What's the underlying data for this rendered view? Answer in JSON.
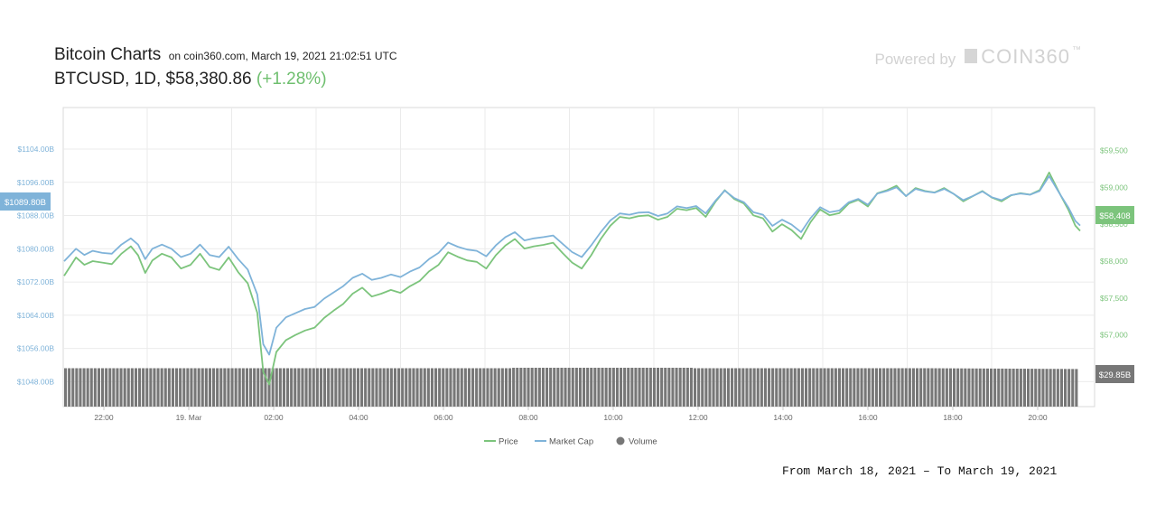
{
  "header": {
    "title": "Bitcoin Charts",
    "source": "on coin360.com, March 19, 2021 21:02:51 UTC",
    "pair": "BTCUSD, 1D, $58,380.86",
    "change": "(+1.28%)"
  },
  "branding": {
    "powered_by": "Powered by",
    "logo_text": "COIN360",
    "logo_tm": "™"
  },
  "footer": {
    "date_range": "From March 18, 2021 – To March 19, 2021"
  },
  "colors": {
    "price": "#7cc47c",
    "market_cap": "#7fb3d9",
    "volume": "#777777",
    "grid": "#ebebeb"
  },
  "chart_data": {
    "type": "line",
    "x_tick_labels": [
      "22:00",
      "19. Mar",
      "02:00",
      "04:00",
      "06:00",
      "08:00",
      "10:00",
      "12:00",
      "14:00",
      "16:00",
      "18:00",
      "20:00"
    ],
    "left_axis": {
      "ticks": [
        "$1048.00B",
        "$1056.00B",
        "$1064.00B",
        "$1072.00B",
        "$1080.00B",
        "$1088.00B",
        "$1096.00B",
        "$1104.00B"
      ],
      "range": [
        1042,
        1114
      ]
    },
    "right_axis": {
      "ticks": [
        "$56,500",
        "$57,000",
        "$57,500",
        "$58,000",
        "$58,500",
        "$59,000",
        "$59,500"
      ],
      "range": [
        56030,
        60080
      ]
    },
    "current_labels": {
      "market_cap": "$1089.80B",
      "price": "$58,408",
      "volume": "$29.85B"
    },
    "legend": [
      {
        "name": "Price",
        "marker": "line"
      },
      {
        "name": "Market Cap",
        "marker": "line"
      },
      {
        "name": "Volume",
        "marker": "dot"
      }
    ],
    "series": [
      {
        "name": "Price",
        "axis": "right",
        "points": [
          [
            0.0,
            57800
          ],
          [
            0.5,
            58050
          ],
          [
            0.85,
            57950
          ],
          [
            1.2,
            58000
          ],
          [
            1.6,
            57980
          ],
          [
            2.0,
            57960
          ],
          [
            2.4,
            58100
          ],
          [
            2.8,
            58200
          ],
          [
            3.1,
            58080
          ],
          [
            3.4,
            57840
          ],
          [
            3.7,
            58010
          ],
          [
            4.1,
            58100
          ],
          [
            4.5,
            58050
          ],
          [
            4.9,
            57900
          ],
          [
            5.3,
            57950
          ],
          [
            5.7,
            58100
          ],
          [
            6.1,
            57920
          ],
          [
            6.5,
            57880
          ],
          [
            6.9,
            58050
          ],
          [
            7.3,
            57850
          ],
          [
            7.7,
            57700
          ],
          [
            8.1,
            57300
          ],
          [
            8.35,
            56500
          ],
          [
            8.6,
            56330
          ],
          [
            8.9,
            56770
          ],
          [
            9.3,
            56930
          ],
          [
            9.7,
            57000
          ],
          [
            10.1,
            57060
          ],
          [
            10.5,
            57100
          ],
          [
            10.9,
            57230
          ],
          [
            11.3,
            57330
          ],
          [
            11.7,
            57420
          ],
          [
            12.1,
            57560
          ],
          [
            12.5,
            57640
          ],
          [
            12.9,
            57520
          ],
          [
            13.3,
            57560
          ],
          [
            13.7,
            57610
          ],
          [
            14.1,
            57570
          ],
          [
            14.5,
            57660
          ],
          [
            14.9,
            57730
          ],
          [
            15.3,
            57860
          ],
          [
            15.7,
            57950
          ],
          [
            16.1,
            58120
          ],
          [
            16.5,
            58060
          ],
          [
            16.9,
            58010
          ],
          [
            17.3,
            57990
          ],
          [
            17.7,
            57900
          ],
          [
            18.1,
            58080
          ],
          [
            18.5,
            58210
          ],
          [
            18.9,
            58300
          ],
          [
            19.3,
            58170
          ],
          [
            19.7,
            58200
          ],
          [
            20.1,
            58220
          ],
          [
            20.5,
            58250
          ],
          [
            20.9,
            58110
          ],
          [
            21.3,
            57980
          ],
          [
            21.7,
            57900
          ],
          [
            22.1,
            58080
          ],
          [
            22.5,
            58300
          ],
          [
            22.9,
            58480
          ],
          [
            23.3,
            58600
          ],
          [
            23.7,
            58580
          ],
          [
            24.1,
            58610
          ],
          [
            24.5,
            58620
          ],
          [
            24.9,
            58560
          ],
          [
            25.3,
            58600
          ],
          [
            25.7,
            58710
          ],
          [
            26.1,
            58690
          ],
          [
            26.5,
            58720
          ],
          [
            26.9,
            58600
          ],
          [
            27.3,
            58800
          ],
          [
            27.7,
            58960
          ],
          [
            28.1,
            58840
          ],
          [
            28.5,
            58780
          ],
          [
            28.9,
            58620
          ],
          [
            29.3,
            58580
          ],
          [
            29.7,
            58400
          ],
          [
            30.1,
            58500
          ],
          [
            30.5,
            58420
          ],
          [
            30.9,
            58300
          ],
          [
            31.3,
            58530
          ],
          [
            31.7,
            58700
          ],
          [
            32.1,
            58620
          ],
          [
            32.5,
            58650
          ],
          [
            32.9,
            58780
          ],
          [
            33.3,
            58830
          ],
          [
            33.7,
            58740
          ],
          [
            34.1,
            58920
          ],
          [
            34.5,
            58960
          ],
          [
            34.9,
            59020
          ],
          [
            35.3,
            58880
          ],
          [
            35.7,
            58990
          ],
          [
            36.1,
            58950
          ],
          [
            36.5,
            58930
          ],
          [
            36.9,
            58990
          ],
          [
            37.3,
            58910
          ],
          [
            37.7,
            58810
          ],
          [
            38.1,
            58880
          ],
          [
            38.5,
            58950
          ],
          [
            38.9,
            58860
          ],
          [
            39.3,
            58810
          ],
          [
            39.7,
            58890
          ],
          [
            40.1,
            58920
          ],
          [
            40.5,
            58900
          ],
          [
            40.9,
            58960
          ],
          [
            41.3,
            59200
          ],
          [
            41.8,
            58880
          ],
          [
            42.1,
            58700
          ],
          [
            42.4,
            58480
          ],
          [
            42.6,
            58410
          ]
        ]
      },
      {
        "name": "Market Cap",
        "axis": "left",
        "points": [
          [
            0.0,
            1077
          ],
          [
            0.5,
            1080
          ],
          [
            0.85,
            1078.5
          ],
          [
            1.2,
            1079.5
          ],
          [
            1.6,
            1079
          ],
          [
            2.0,
            1078.8
          ],
          [
            2.4,
            1081
          ],
          [
            2.8,
            1082.5
          ],
          [
            3.1,
            1081
          ],
          [
            3.4,
            1077.5
          ],
          [
            3.7,
            1080
          ],
          [
            4.1,
            1081
          ],
          [
            4.5,
            1080
          ],
          [
            4.9,
            1078
          ],
          [
            5.3,
            1078.8
          ],
          [
            5.7,
            1081
          ],
          [
            6.1,
            1078.5
          ],
          [
            6.5,
            1078
          ],
          [
            6.9,
            1080.5
          ],
          [
            7.3,
            1077.5
          ],
          [
            7.7,
            1075
          ],
          [
            8.1,
            1069
          ],
          [
            8.35,
            1057
          ],
          [
            8.6,
            1054.5
          ],
          [
            8.9,
            1061
          ],
          [
            9.3,
            1063.5
          ],
          [
            9.7,
            1064.5
          ],
          [
            10.1,
            1065.5
          ],
          [
            10.5,
            1066
          ],
          [
            10.9,
            1068
          ],
          [
            11.3,
            1069.5
          ],
          [
            11.7,
            1071
          ],
          [
            12.1,
            1073
          ],
          [
            12.5,
            1074
          ],
          [
            12.9,
            1072.5
          ],
          [
            13.3,
            1073
          ],
          [
            13.7,
            1073.8
          ],
          [
            14.1,
            1073.2
          ],
          [
            14.5,
            1074.5
          ],
          [
            14.9,
            1075.5
          ],
          [
            15.3,
            1077.5
          ],
          [
            15.7,
            1079
          ],
          [
            16.1,
            1081.5
          ],
          [
            16.5,
            1080.5
          ],
          [
            16.9,
            1079.8
          ],
          [
            17.3,
            1079.5
          ],
          [
            17.7,
            1078.2
          ],
          [
            18.1,
            1080.8
          ],
          [
            18.5,
            1082.8
          ],
          [
            18.9,
            1084
          ],
          [
            19.3,
            1082
          ],
          [
            19.7,
            1082.5
          ],
          [
            20.1,
            1082.8
          ],
          [
            20.5,
            1083.2
          ],
          [
            20.9,
            1081.2
          ],
          [
            21.3,
            1079.2
          ],
          [
            21.7,
            1078
          ],
          [
            22.1,
            1080.8
          ],
          [
            22.5,
            1084
          ],
          [
            22.9,
            1086.8
          ],
          [
            23.3,
            1088.5
          ],
          [
            23.7,
            1088.2
          ],
          [
            24.1,
            1088.7
          ],
          [
            24.5,
            1088.8
          ],
          [
            24.9,
            1087.9
          ],
          [
            25.3,
            1088.5
          ],
          [
            25.7,
            1090.2
          ],
          [
            26.1,
            1089.8
          ],
          [
            26.5,
            1090.3
          ],
          [
            26.9,
            1088.5
          ],
          [
            27.3,
            1091.5
          ],
          [
            27.7,
            1094
          ],
          [
            28.1,
            1092.2
          ],
          [
            28.5,
            1091.2
          ],
          [
            28.9,
            1088.8
          ],
          [
            29.3,
            1088.2
          ],
          [
            29.7,
            1085.5
          ],
          [
            30.1,
            1087
          ],
          [
            30.5,
            1085.8
          ],
          [
            30.9,
            1084
          ],
          [
            31.3,
            1087.4
          ],
          [
            31.7,
            1090
          ],
          [
            32.1,
            1088.8
          ],
          [
            32.5,
            1089.2
          ],
          [
            32.9,
            1091.2
          ],
          [
            33.3,
            1092
          ],
          [
            33.7,
            1090.6
          ],
          [
            34.1,
            1093.3
          ],
          [
            34.5,
            1093.9
          ],
          [
            34.9,
            1094.8
          ],
          [
            35.3,
            1092.7
          ],
          [
            35.7,
            1094.4
          ],
          [
            36.1,
            1093.8
          ],
          [
            36.5,
            1093.5
          ],
          [
            36.9,
            1094.4
          ],
          [
            37.3,
            1093.2
          ],
          [
            37.7,
            1091.7
          ],
          [
            38.1,
            1092.7
          ],
          [
            38.5,
            1093.8
          ],
          [
            38.9,
            1092.4
          ],
          [
            39.3,
            1091.7
          ],
          [
            39.7,
            1092.9
          ],
          [
            40.1,
            1093.3
          ],
          [
            40.1,
            1093.3
          ],
          [
            40.5,
            1093
          ],
          [
            40.9,
            1093.9
          ],
          [
            41.3,
            1097.5
          ],
          [
            41.8,
            1092.7
          ],
          [
            42.1,
            1090
          ],
          [
            42.4,
            1086.7
          ],
          [
            42.6,
            1085.6
          ]
        ]
      },
      {
        "name": "Volume",
        "axis": "volume",
        "note_level": 0.97
      }
    ]
  }
}
